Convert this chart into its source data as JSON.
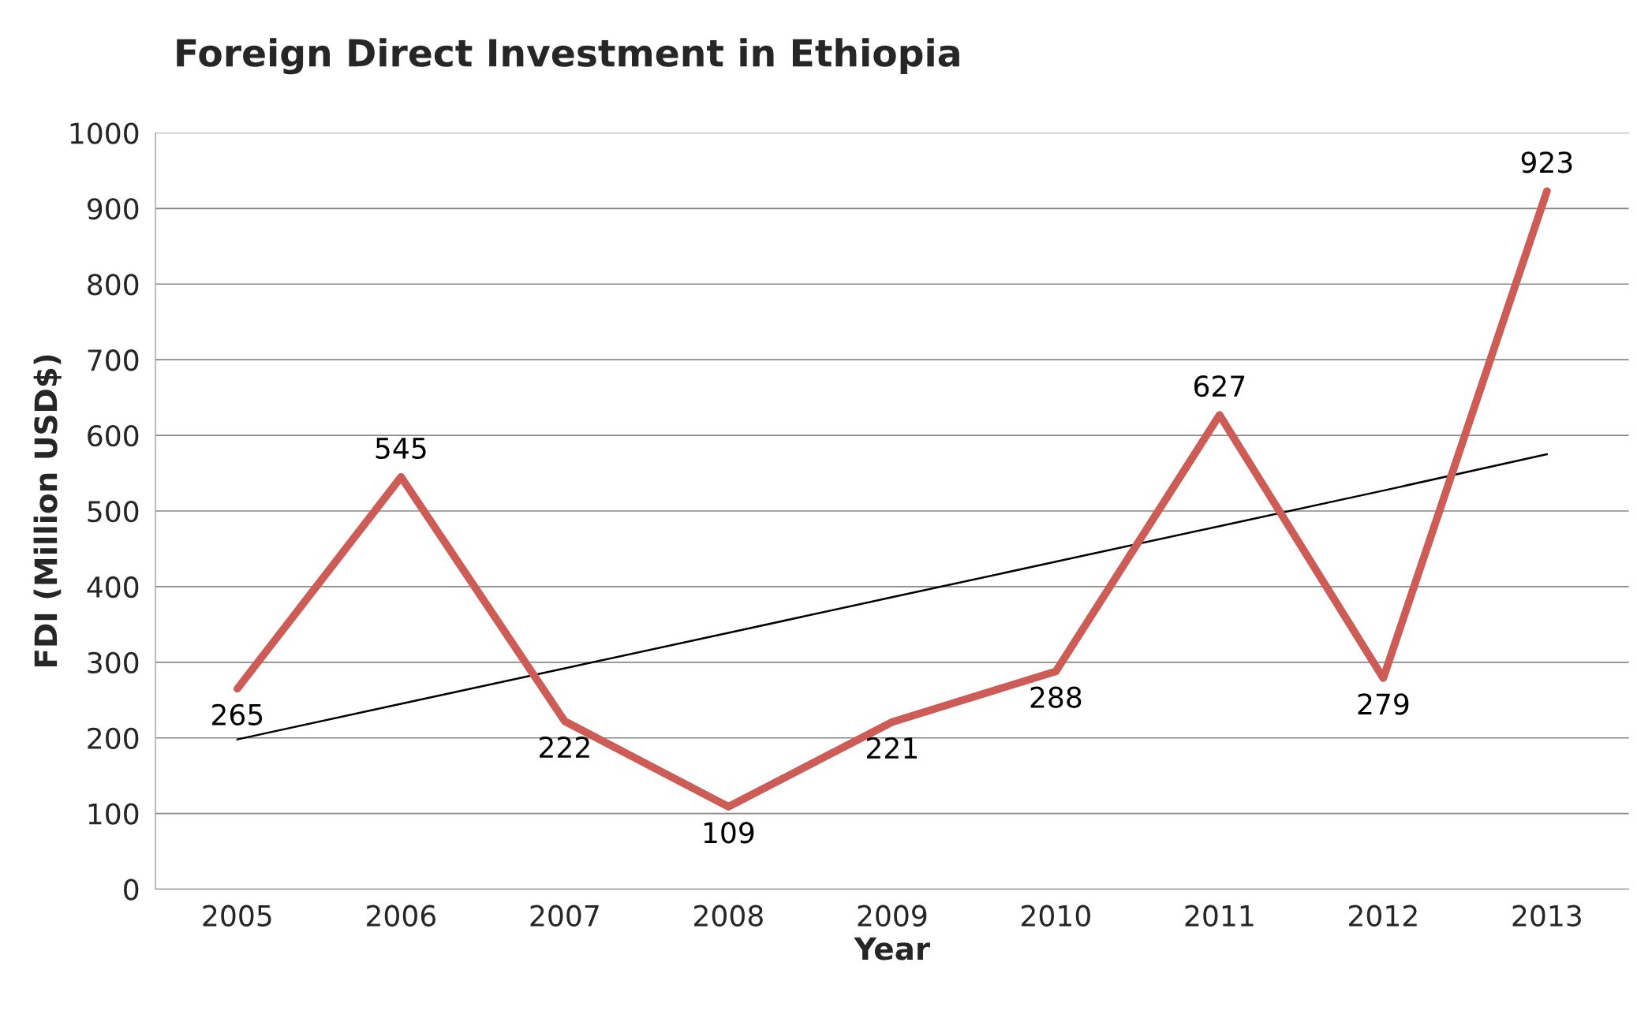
{
  "chart_data": {
    "type": "line",
    "title": "Foreign Direct Investment in Ethiopia",
    "xlabel": "Year",
    "ylabel": "FDI (Million USD$)",
    "categories": [
      "2005",
      "2006",
      "2007",
      "2008",
      "2009",
      "2010",
      "2011",
      "2012",
      "2013"
    ],
    "series": [
      {
        "color": "#cd5c57",
        "values": [
          265,
          545,
          222,
          109,
          221,
          288,
          627,
          279,
          923
        ],
        "data_labels": true
      },
      {
        "color": "#000000",
        "values": [
          198,
          245,
          292,
          339,
          386,
          433,
          480,
          527,
          575
        ]
      }
    ],
    "ylim": [
      0,
      1000
    ],
    "yticks": [
      0,
      100,
      200,
      300,
      400,
      500,
      600,
      700,
      800,
      900,
      1000
    ],
    "grid": "y",
    "legend": false
  }
}
